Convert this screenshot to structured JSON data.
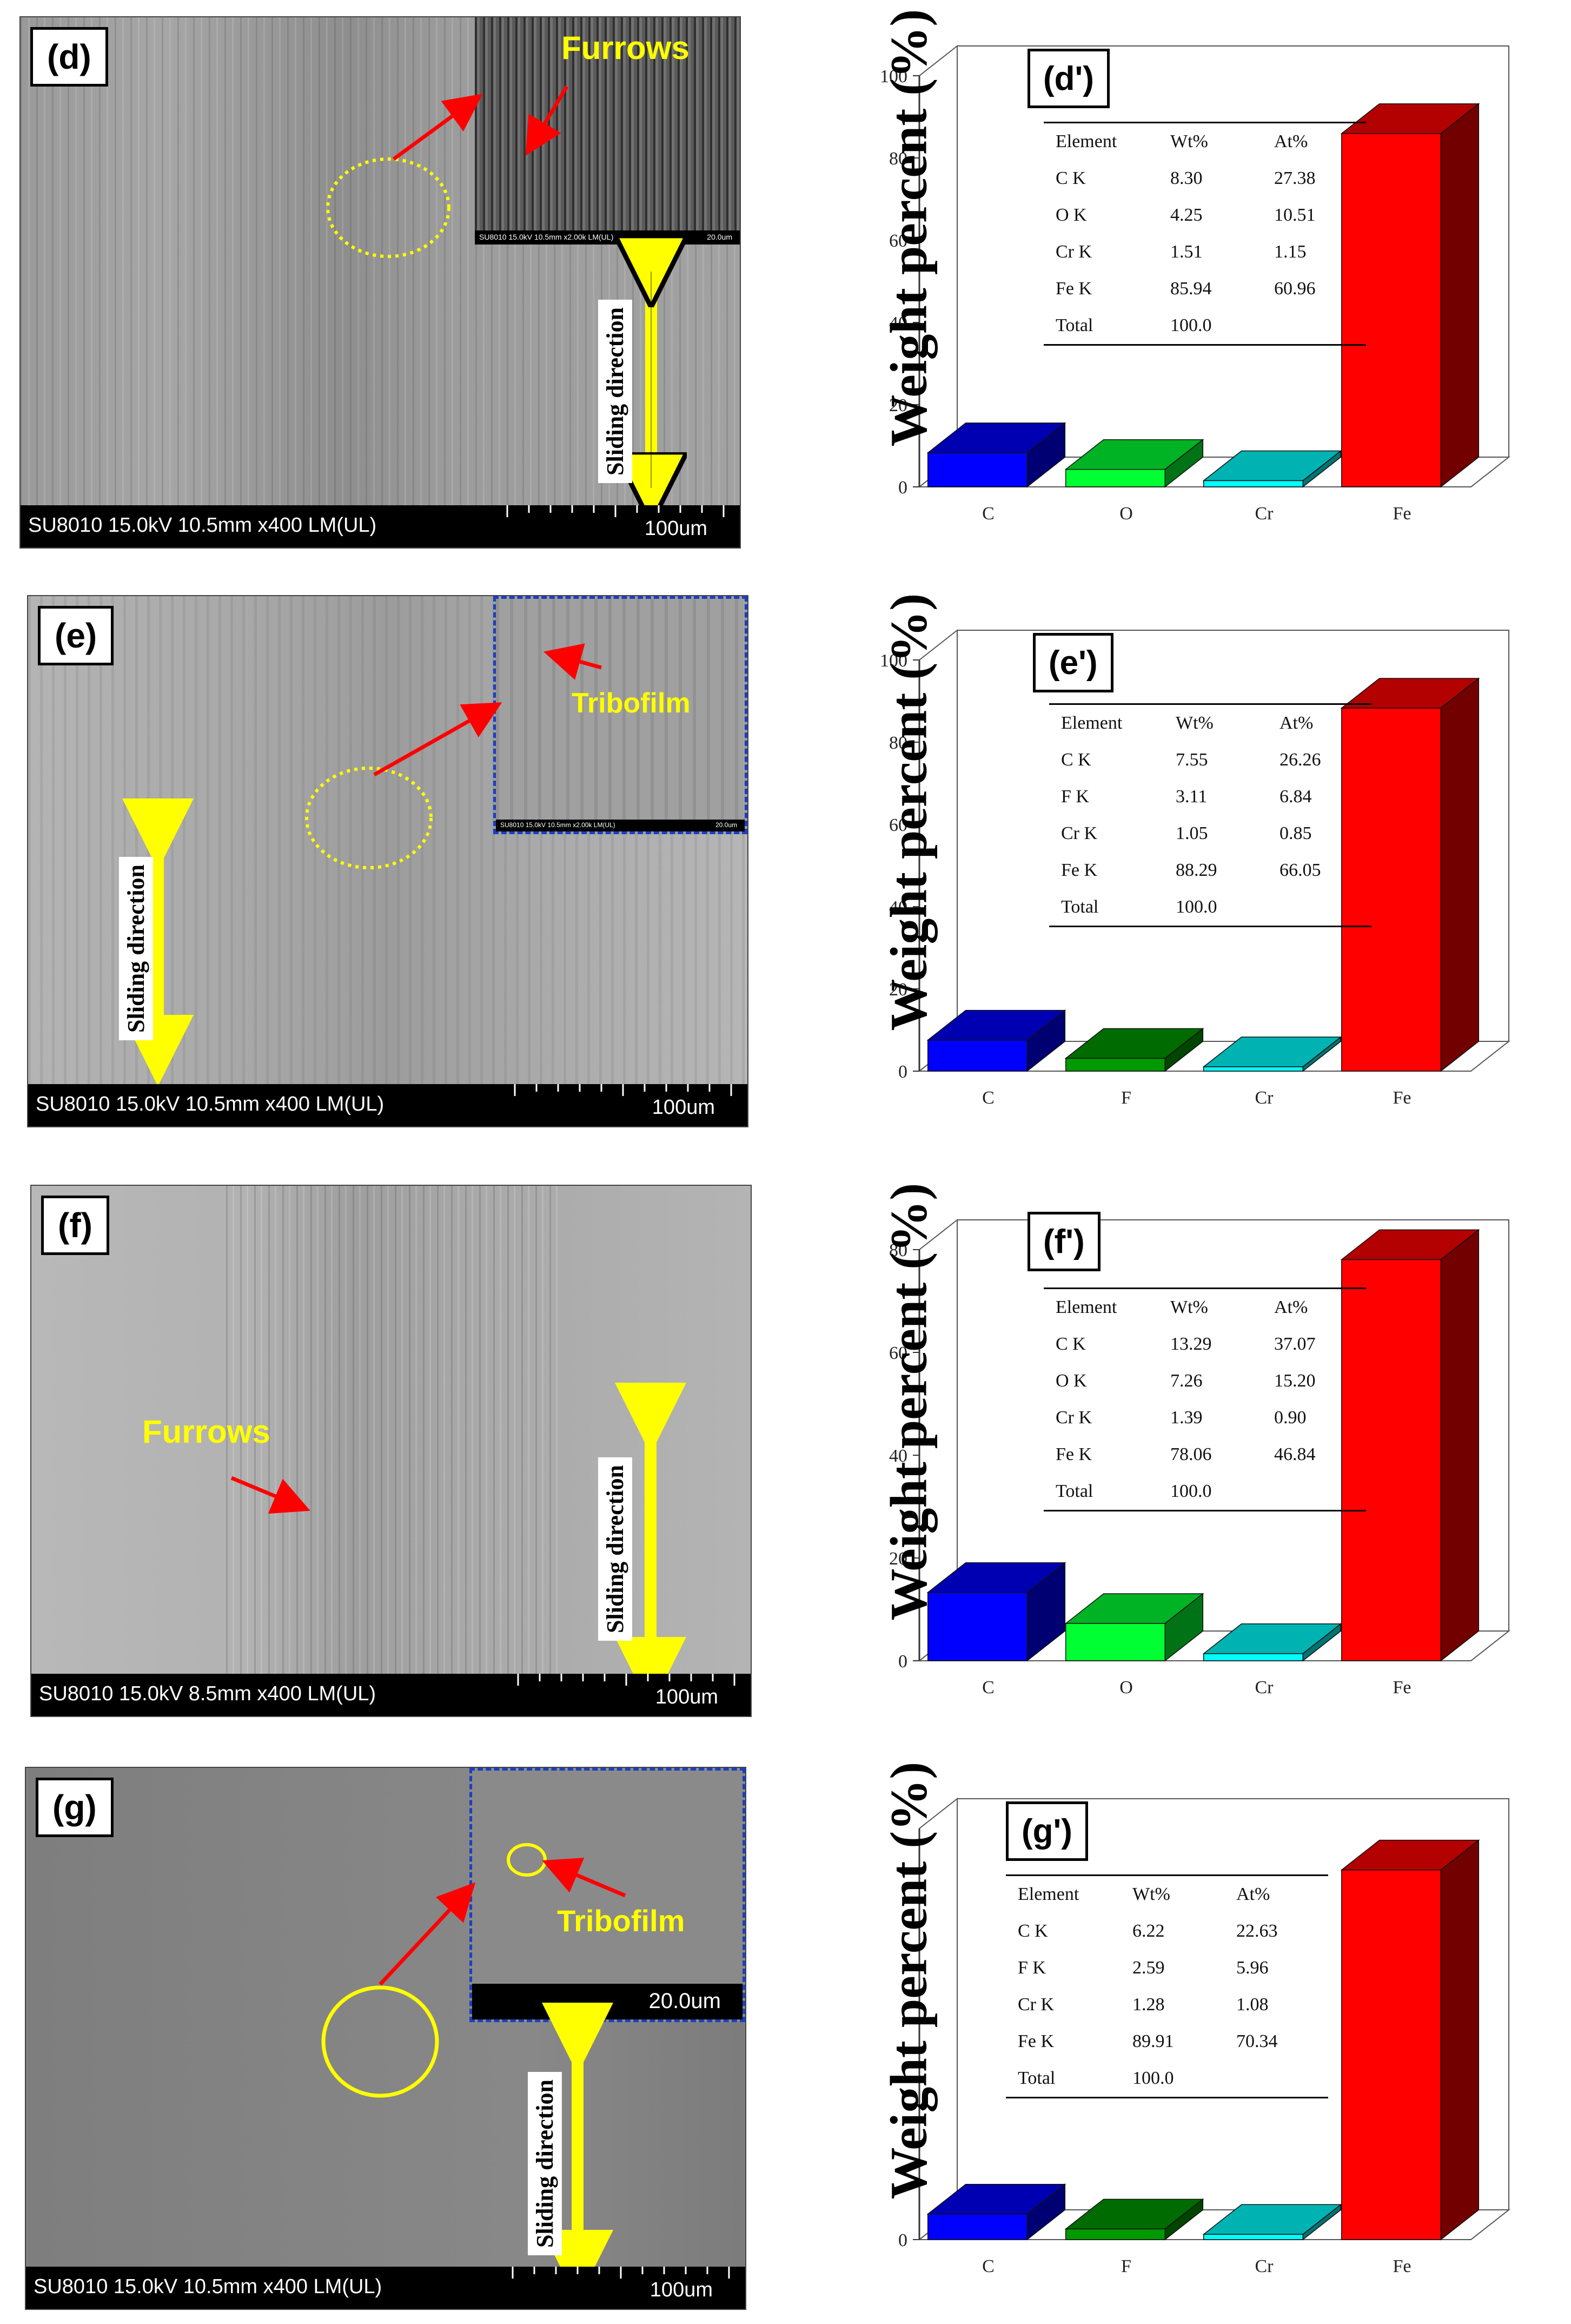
{
  "panels": [
    {
      "tag": "(d)",
      "info": "SU8010 15.0kV 10.5mm x400 LM(UL)",
      "scale": "100um",
      "inset_info": "SU8010 15.0kV 10.5mm x2.00k LM(UL)",
      "inset_scale": "20.0um",
      "feature": "Furrows",
      "sliding": "Sliding direction"
    },
    {
      "tag": "(e)",
      "info": "SU8010 15.0kV 10.5mm x400 LM(UL)",
      "scale": "100um",
      "inset_info": "SU8010 15.0kV 10.5mm x2.00k LM(UL)",
      "inset_scale": "20.0um",
      "feature": "Tribofilm",
      "sliding": "Sliding direction"
    },
    {
      "tag": "(f)",
      "info": "SU8010 15.0kV 8.5mm x400 LM(UL)",
      "scale": "100um",
      "feature": "Furrows",
      "sliding": "Sliding direction"
    },
    {
      "tag": "(g)",
      "info": "SU8010 15.0kV 10.5mm x400 LM(UL)",
      "scale": "100um",
      "inset_scale": "20.0um",
      "feature": "Tribofilm",
      "sliding": "Sliding direction"
    }
  ],
  "colors": {
    "blue": "#0000ff",
    "green": "#00ff33",
    "dark_green": "#009900",
    "cyan": "#00ffff",
    "teal": "#008b8b",
    "red": "#ff0000",
    "dark_red": "#7a0000",
    "yellow": "#ffff00"
  },
  "chart_data": [
    {
      "type": "bar",
      "tag": "(d')",
      "ylabel": "Weight percent (%)",
      "categories": [
        "C",
        "O",
        "Cr",
        "Fe"
      ],
      "values": [
        8.3,
        4.25,
        1.51,
        85.94
      ],
      "bar_colors": [
        "blue",
        "green",
        "cyan",
        "red"
      ],
      "yticks": [
        "0",
        "20",
        "40",
        "60",
        "80",
        "100"
      ],
      "ylim": [
        0,
        100
      ],
      "table": {
        "header": [
          "Element",
          "Wt%",
          "At%"
        ],
        "rows": [
          [
            "C K",
            "8.30",
            "27.38"
          ],
          [
            "O K",
            "4.25",
            "10.51"
          ],
          [
            "Cr K",
            "1.51",
            "1.15"
          ],
          [
            "Fe K",
            "85.94",
            "60.96"
          ],
          [
            "Total",
            "100.0",
            ""
          ]
        ]
      }
    },
    {
      "type": "bar",
      "tag": "(e')",
      "ylabel": "Weight percent (%)",
      "categories": [
        "C",
        "F",
        "Cr",
        "Fe"
      ],
      "values": [
        7.55,
        3.11,
        1.05,
        88.29
      ],
      "bar_colors": [
        "blue",
        "dark_green",
        "cyan",
        "red"
      ],
      "yticks": [
        "0",
        "20",
        "40",
        "60",
        "80",
        "100"
      ],
      "ylim": [
        0,
        100
      ],
      "table": {
        "header": [
          "Element",
          "Wt%",
          "At%"
        ],
        "rows": [
          [
            "C K",
            "7.55",
            "26.26"
          ],
          [
            "F K",
            "3.11",
            "6.84"
          ],
          [
            "Cr K",
            "1.05",
            "0.85"
          ],
          [
            "Fe K",
            "88.29",
            "66.05"
          ],
          [
            "Total",
            "100.0",
            ""
          ]
        ]
      }
    },
    {
      "type": "bar",
      "tag": "(f')",
      "ylabel": "Weight percent (%)",
      "categories": [
        "C",
        "O",
        "Cr",
        "Fe"
      ],
      "values": [
        13.29,
        7.26,
        1.39,
        78.06
      ],
      "bar_colors": [
        "blue",
        "green",
        "cyan",
        "red"
      ],
      "yticks": [
        "0",
        "20",
        "40",
        "60",
        "80"
      ],
      "ylim": [
        0,
        80
      ],
      "table": {
        "header": [
          "Element",
          "Wt%",
          "At%"
        ],
        "rows": [
          [
            "C K",
            "13.29",
            "37.07"
          ],
          [
            "O K",
            "7.26",
            "15.20"
          ],
          [
            "Cr K",
            "1.39",
            "0.90"
          ],
          [
            "Fe K",
            "78.06",
            "46.84"
          ],
          [
            "Total",
            "100.0",
            ""
          ]
        ]
      }
    },
    {
      "type": "bar",
      "tag": "(g')",
      "ylabel": "Weight percent (%)",
      "categories": [
        "C",
        "F",
        "Cr",
        "Fe"
      ],
      "values": [
        6.22,
        2.59,
        1.28,
        89.91
      ],
      "bar_colors": [
        "blue",
        "dark_green",
        "cyan",
        "red"
      ],
      "yticks": [
        "0"
      ],
      "ylim": [
        0,
        100
      ],
      "table": {
        "header": [
          "Element",
          "Wt%",
          "At%"
        ],
        "rows": [
          [
            "C K",
            "6.22",
            "22.63"
          ],
          [
            "F K",
            "2.59",
            "5.96"
          ],
          [
            "Cr K",
            "1.28",
            "1.08"
          ],
          [
            "Fe K",
            "89.91",
            "70.34"
          ],
          [
            "Total",
            "100.0",
            ""
          ]
        ]
      }
    }
  ]
}
